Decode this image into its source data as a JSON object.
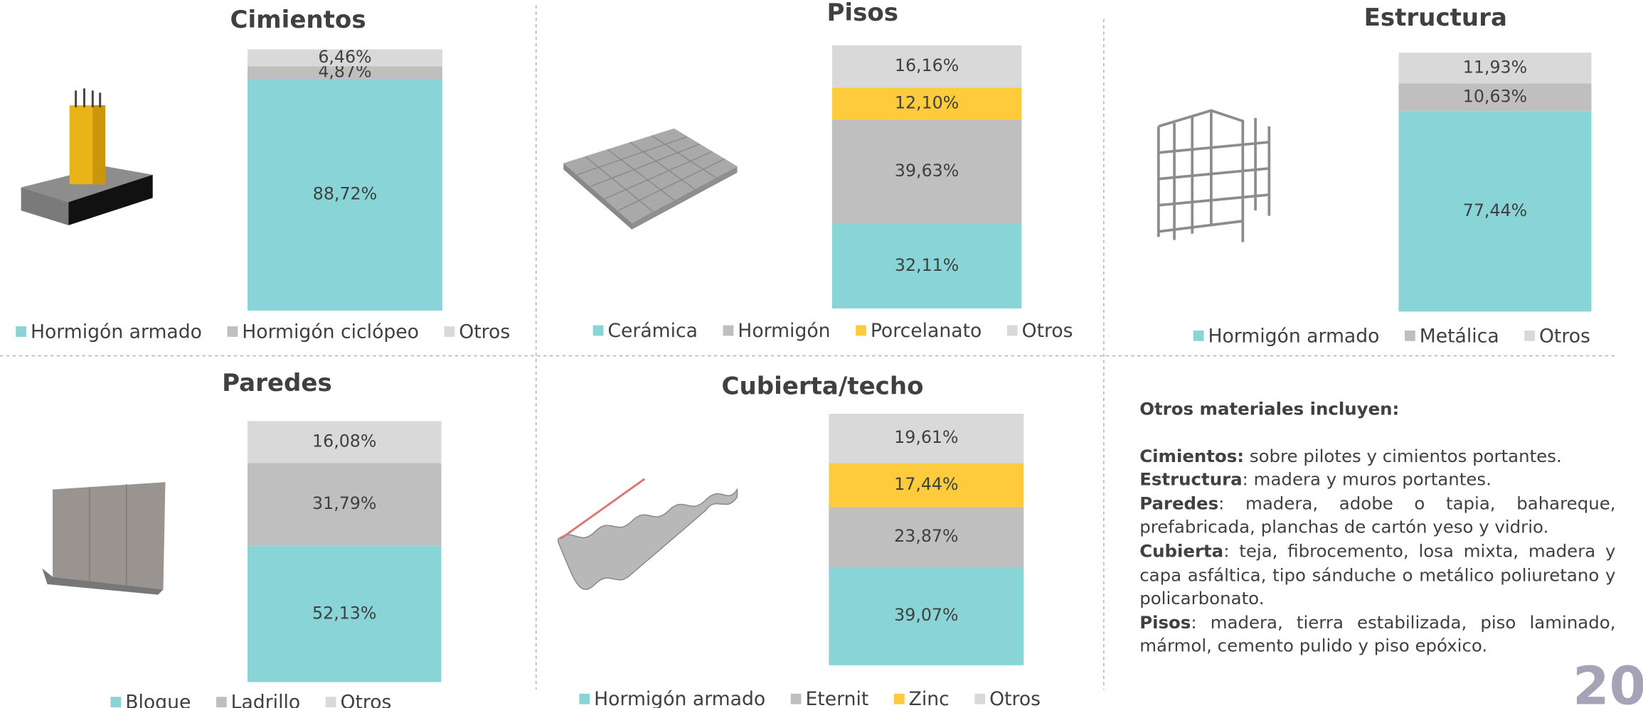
{
  "chart_data": [
    {
      "type": "bar",
      "stacked": true,
      "title": "Cimientos",
      "series": [
        {
          "name": "Hormigón armado",
          "color": "#88d4d6",
          "values": [
            88.72
          ],
          "value_labels": [
            "88,72%"
          ]
        },
        {
          "name": "Hormigón ciclópeo",
          "color": "#bfbfbf",
          "values": [
            4.87
          ],
          "value_labels": [
            "4,87%"
          ]
        },
        {
          "name": "Otros",
          "color": "#d9d9d9",
          "values": [
            6.46
          ],
          "value_labels": [
            "6,46%"
          ]
        }
      ]
    },
    {
      "type": "bar",
      "stacked": true,
      "title": "Pisos",
      "series": [
        {
          "name": "Cerámica",
          "color": "#88d4d6",
          "values": [
            32.11
          ],
          "value_labels": [
            "32,11%"
          ]
        },
        {
          "name": "Hormigón",
          "color": "#bfbfbf",
          "values": [
            39.63
          ],
          "value_labels": [
            "39,63%"
          ]
        },
        {
          "name": "Porcelanato",
          "color": "#fdcb3b",
          "values": [
            12.1
          ],
          "value_labels": [
            "12,10%"
          ]
        },
        {
          "name": "Otros",
          "color": "#d9d9d9",
          "values": [
            16.16
          ],
          "value_labels": [
            "16,16%"
          ]
        }
      ]
    },
    {
      "type": "bar",
      "stacked": true,
      "title": "Estructura",
      "series": [
        {
          "name": "Hormigón armado",
          "color": "#88d4d6",
          "values": [
            77.44
          ],
          "value_labels": [
            "77,44%"
          ]
        },
        {
          "name": "Metálica",
          "color": "#bfbfbf",
          "values": [
            10.63
          ],
          "value_labels": [
            "10,63%"
          ]
        },
        {
          "name": "Otros",
          "color": "#d9d9d9",
          "values": [
            11.93
          ],
          "value_labels": [
            "11,93%"
          ]
        }
      ]
    },
    {
      "type": "bar",
      "stacked": true,
      "title": "Paredes",
      "series": [
        {
          "name": "Bloque",
          "color": "#88d4d6",
          "values": [
            52.13
          ],
          "value_labels": [
            "52,13%"
          ]
        },
        {
          "name": "Ladrillo",
          "color": "#bfbfbf",
          "values": [
            31.79
          ],
          "value_labels": [
            "31,79%"
          ]
        },
        {
          "name": "Otros",
          "color": "#d9d9d9",
          "values": [
            16.08
          ],
          "value_labels": [
            "16,08%"
          ]
        }
      ]
    },
    {
      "type": "bar",
      "stacked": true,
      "title": "Cubierta/techo",
      "series": [
        {
          "name": "Hormigón armado",
          "color": "#88d4d6",
          "values": [
            39.07
          ],
          "value_labels": [
            "39,07%"
          ]
        },
        {
          "name": "Eternit",
          "color": "#bfbfbf",
          "values": [
            23.87
          ],
          "value_labels": [
            "23,87%"
          ]
        },
        {
          "name": "Zinc",
          "color": "#fdcb3b",
          "values": [
            17.44
          ],
          "value_labels": [
            "17,44%"
          ]
        },
        {
          "name": "Otros",
          "color": "#d9d9d9",
          "values": [
            19.61
          ],
          "value_labels": [
            "19,61%"
          ]
        }
      ]
    }
  ],
  "notes": {
    "heading": "Otros materiales incluyen:",
    "items": [
      {
        "term": "Cimientos:",
        "text": " sobre pilotes y cimientos portantes."
      },
      {
        "term": "Estructura",
        "text": ": madera y muros portantes."
      },
      {
        "term": "Paredes",
        "text": ": madera, adobe o tapia, bahareque, prefabricada, planchas de cartón yeso y vidrio."
      },
      {
        "term": "Cubierta",
        "text": ": teja, fibrocemento, losa mixta, madera y capa asfáltica, tipo sánduche o metálico poliuretano y policarbonato."
      },
      {
        "term": "Pisos",
        "text": ": madera, tierra estabilizada, piso laminado, mármol, cemento pulido y piso epóxico."
      }
    ]
  },
  "page_number": "20"
}
